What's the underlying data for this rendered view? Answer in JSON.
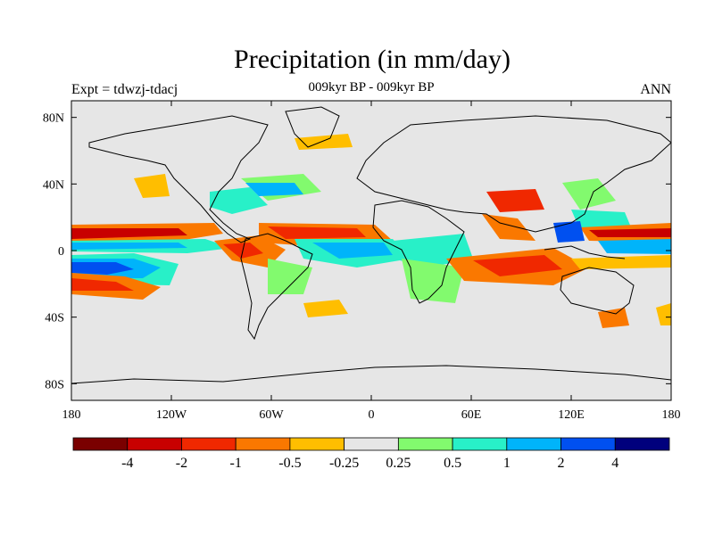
{
  "title": "Precipitation (in mm/day)",
  "subtitle": "009kyr BP - 009kyr BP",
  "left_label": "Expt = tdwzj-tdacj",
  "right_label": "ANN",
  "lat_labels": [
    "80N",
    "40N",
    "0",
    "40S",
    "80S"
  ],
  "lon_labels": [
    "180",
    "120W",
    "60W",
    "0",
    "60E",
    "120E",
    "180"
  ],
  "colorbar": {
    "colors": [
      "#7a0000",
      "#c80000",
      "#f02800",
      "#fa7800",
      "#ffbe00",
      "#e6e6e6",
      "#82fa6e",
      "#28f0c8",
      "#00b4fa",
      "#0050f0",
      "#00007d"
    ],
    "labels": [
      "-4",
      "-2",
      "-1",
      "-0.5",
      "-0.25",
      "0.25",
      "0.5",
      "1",
      "2",
      "4"
    ]
  },
  "colors": {
    "ocean_background": "#e6e6e6",
    "coast": "#000000"
  }
}
